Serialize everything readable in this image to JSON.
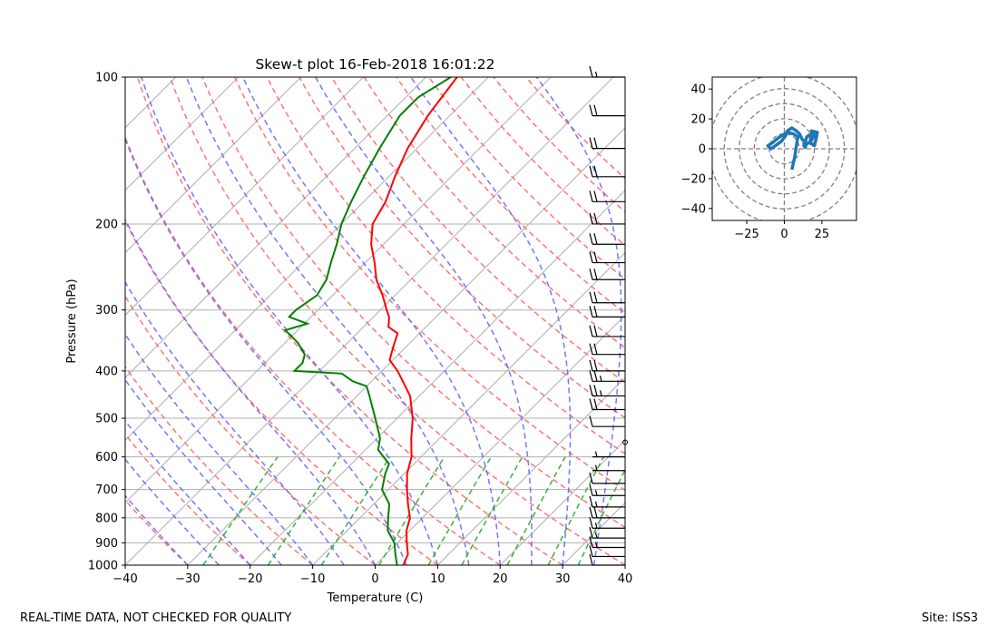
{
  "footer": {
    "disclaimer": "REAL-TIME DATA, NOT CHECKED FOR QUALITY",
    "site": "Site: ISS3"
  },
  "chart_data": [
    {
      "type": "line",
      "title": "Skew-t plot 16-Feb-2018 16:01:22",
      "xlabel": "Temperature (C)",
      "ylabel": "Pressure (hPa)",
      "xlim": [
        -40,
        40
      ],
      "ylim": [
        1000,
        100
      ],
      "y_scale": "log",
      "skew": "isotherms tilted 45 degrees",
      "x_ticks": [
        -40,
        -30,
        -20,
        -10,
        0,
        10,
        20,
        30,
        40
      ],
      "y_ticks": [
        1000,
        900,
        800,
        700,
        600,
        500,
        400,
        300,
        200,
        100
      ],
      "grid": true,
      "colors": {
        "temperature": "#ff0000",
        "dewpoint": "#008000",
        "dry_adiabats": "#ff6666",
        "moist_adiabats": "#6666ff",
        "mixing_ratio": "#22aa22",
        "isotherms": "#b0b0b0",
        "wind_barbs": "#000000"
      },
      "series": [
        {
          "key": "temperature",
          "pressure": [
            1000,
            950,
            900,
            850,
            800,
            750,
            700,
            650,
            600,
            550,
            500,
            450,
            420,
            400,
            380,
            365,
            350,
            335,
            325,
            310,
            300,
            280,
            260,
            240,
            220,
            200,
            180,
            160,
            140,
            120,
            100
          ],
          "values": [
            4.5,
            3.5,
            1.5,
            -0.5,
            -2.0,
            -4.5,
            -7.0,
            -9.5,
            -11.5,
            -14.5,
            -17.5,
            -21.5,
            -25.0,
            -27.5,
            -30.5,
            -31.5,
            -32.5,
            -33.5,
            -36.0,
            -37.5,
            -39.0,
            -42.0,
            -45.5,
            -48.5,
            -52.0,
            -55.0,
            -56.5,
            -59.0,
            -61.5,
            -63.5,
            -65.0
          ]
        },
        {
          "key": "dewpoint",
          "pressure": [
            1000,
            950,
            900,
            850,
            800,
            750,
            700,
            650,
            620,
            600,
            580,
            550,
            500,
            450,
            430,
            420,
            405,
            400,
            385,
            370,
            350,
            330,
            320,
            310,
            300,
            280,
            260,
            240,
            220,
            200,
            180,
            160,
            140,
            120,
            110,
            100
          ],
          "values": [
            3.5,
            1.5,
            -0.5,
            -3.5,
            -5.5,
            -7.5,
            -11.0,
            -13.0,
            -14.0,
            -16.0,
            -18.0,
            -19.5,
            -23.5,
            -28.0,
            -30.0,
            -33.0,
            -36.0,
            -44.0,
            -44.0,
            -45.0,
            -48.0,
            -52.0,
            -49.5,
            -53.5,
            -53.5,
            -52.5,
            -53.5,
            -55.5,
            -57.5,
            -60.0,
            -62.0,
            -64.0,
            -66.0,
            -68.0,
            -68.0,
            -66.0
          ]
        }
      ],
      "wind_barbs": {
        "pressure": [
          1000,
          960,
          920,
          880,
          840,
          800,
          760,
          720,
          680,
          640,
          600,
          560,
          520,
          480,
          450,
          420,
          400,
          370,
          340,
          310,
          290,
          260,
          240,
          220,
          200,
          180,
          160,
          140,
          120,
          100
        ],
        "speed_kt": [
          10,
          10,
          15,
          15,
          15,
          20,
          15,
          15,
          10,
          5,
          5,
          0,
          10,
          20,
          25,
          25,
          20,
          20,
          20,
          20,
          20,
          20,
          20,
          20,
          20,
          20,
          20,
          20,
          20,
          15
        ]
      }
    },
    {
      "type": "line",
      "title": "",
      "xlabel": "",
      "ylabel": "",
      "xlim": [
        -48,
        48
      ],
      "ylim": [
        -48,
        48
      ],
      "x_ticks": [
        -25,
        0,
        25
      ],
      "y_ticks": [
        -40,
        -20,
        0,
        20,
        40
      ],
      "range_rings": [
        10,
        20,
        30,
        40,
        50
      ],
      "color": "#1f77b4",
      "u": [
        5,
        7,
        8,
        9,
        6,
        2,
        -3,
        -8,
        -11,
        -9,
        -6,
        -2,
        1,
        2,
        5,
        8,
        10,
        12,
        15,
        14,
        13,
        15,
        18,
        17,
        20,
        21,
        22,
        18,
        20,
        17,
        12
      ],
      "v": [
        -14,
        -5,
        2,
        8,
        10,
        11,
        8,
        4,
        2,
        0,
        2,
        5,
        9,
        12,
        14,
        12,
        10,
        6,
        4,
        1,
        2,
        8,
        10,
        4,
        2,
        6,
        11,
        12,
        9,
        4,
        3
      ]
    }
  ]
}
